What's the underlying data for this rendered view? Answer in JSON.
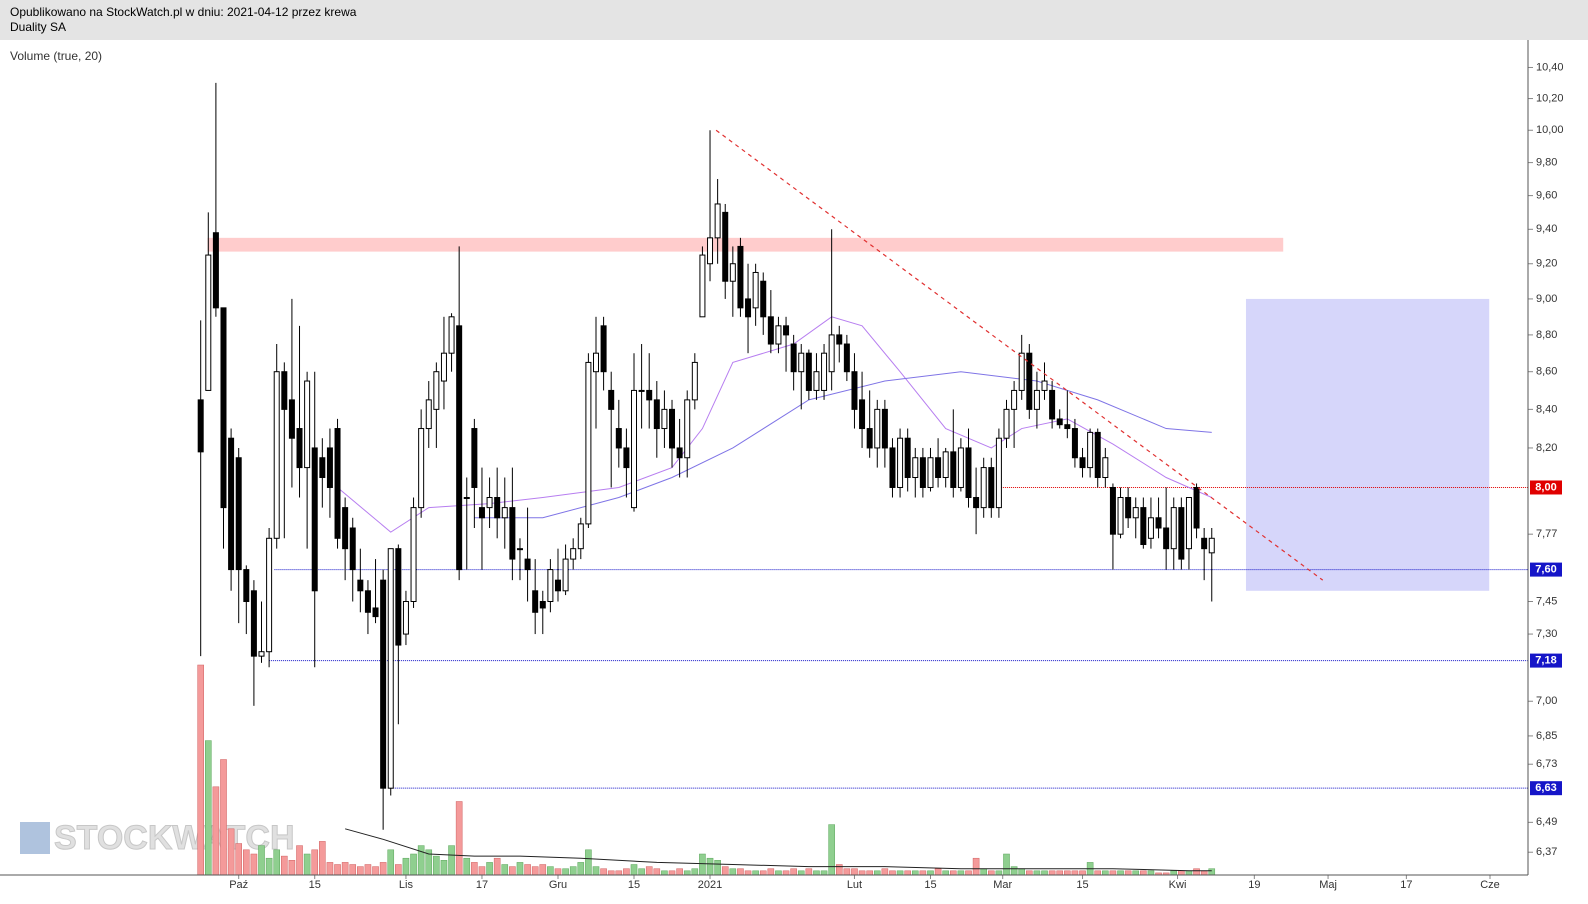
{
  "header": {
    "line1": "Opublikowano na StockWatch.pl w dniu: 2021-04-12 przez krewa",
    "line2": "Duality SA"
  },
  "indicator_label": "Volume (true, 20)",
  "watermark": "STOCKWATCH",
  "chart_data": {
    "type": "candlestick",
    "log_scale": true,
    "xlim": [
      -26.4,
      174.6
    ],
    "ylim": [
      6.28,
      10.58
    ],
    "xticks": [
      {
        "value": 5,
        "label": "Paź"
      },
      {
        "value": 15,
        "label": "15"
      },
      {
        "value": 27,
        "label": "Lis"
      },
      {
        "value": 37,
        "label": "17"
      },
      {
        "value": 47,
        "label": "Gru"
      },
      {
        "value": 57,
        "label": "15"
      },
      {
        "value": 67,
        "label": "2021"
      },
      {
        "value": 86,
        "label": "Lut"
      },
      {
        "value": 96,
        "label": "15"
      },
      {
        "value": 105.5,
        "label": "Mar"
      },
      {
        "value": 116,
        "label": "15"
      },
      {
        "value": 128.5,
        "label": "Kwi"
      },
      {
        "value": 138.6,
        "label": "19"
      },
      {
        "value": 148.3,
        "label": "Maj"
      },
      {
        "value": 158.6,
        "label": "17"
      },
      {
        "value": 169.6,
        "label": "Cze"
      }
    ],
    "yticks": [
      {
        "value": 10.4,
        "label": "10,40"
      },
      {
        "value": 10.2,
        "label": "10,20"
      },
      {
        "value": 10,
        "label": "10,00"
      },
      {
        "value": 9.8,
        "label": "9,80"
      },
      {
        "value": 9.6,
        "label": "9,60"
      },
      {
        "value": 9.4,
        "label": "9,40"
      },
      {
        "value": 9.2,
        "label": "9,20"
      },
      {
        "value": 9,
        "label": "9,00"
      },
      {
        "value": 8.8,
        "label": "8,80"
      },
      {
        "value": 8.6,
        "label": "8,60"
      },
      {
        "value": 8.4,
        "label": "8,40"
      },
      {
        "value": 8.2,
        "label": "8,20"
      },
      {
        "value": 7.77,
        "label": "7,77"
      },
      {
        "value": 7.45,
        "label": "7,45"
      },
      {
        "value": 7.3,
        "label": "7,30"
      },
      {
        "value": 7,
        "label": "7,00"
      },
      {
        "value": 6.85,
        "label": "6,85"
      },
      {
        "value": 6.73,
        "label": "6,73"
      },
      {
        "value": 6.49,
        "label": "6,49"
      },
      {
        "value": 6.37,
        "label": "6,37"
      }
    ],
    "candles": [
      [
        8.45,
        8.88,
        7.2,
        8.18
      ],
      [
        8.5,
        9.5,
        8.5,
        9.25
      ],
      [
        9.38,
        10.3,
        8.9,
        8.95
      ],
      [
        8.95,
        8.95,
        7.7,
        7.9
      ],
      [
        8.25,
        8.3,
        7.5,
        7.6
      ],
      [
        8.15,
        8.2,
        7.35,
        7.6
      ],
      [
        7.6,
        7.62,
        7.3,
        7.45
      ],
      [
        7.5,
        7.55,
        6.98,
        7.2
      ],
      [
        7.2,
        7.45,
        7.17,
        7.22
      ],
      [
        7.22,
        7.8,
        7.15,
        7.75
      ],
      [
        7.75,
        8.75,
        7.7,
        8.6
      ],
      [
        8.6,
        8.65,
        7.75,
        8.4
      ],
      [
        8.45,
        9.0,
        8.0,
        8.25
      ],
      [
        8.3,
        8.85,
        7.95,
        8.1
      ],
      [
        8.1,
        8.6,
        7.7,
        8.55
      ],
      [
        8.2,
        8.6,
        7.15,
        7.5
      ],
      [
        8.15,
        8.25,
        7.9,
        8.05
      ],
      [
        8.2,
        8.3,
        7.85,
        8.0
      ],
      [
        8.3,
        8.35,
        7.7,
        7.75
      ],
      [
        7.9,
        7.95,
        7.55,
        7.7
      ],
      [
        7.8,
        7.85,
        7.45,
        7.6
      ],
      [
        7.55,
        7.7,
        7.4,
        7.5
      ],
      [
        7.5,
        7.55,
        7.3,
        7.4
      ],
      [
        7.42,
        7.65,
        7.35,
        7.38
      ],
      [
        7.55,
        7.6,
        6.46,
        6.63
      ],
      [
        6.63,
        7.7,
        6.6,
        7.7
      ],
      [
        7.7,
        7.72,
        6.9,
        7.25
      ],
      [
        7.3,
        7.5,
        7.25,
        7.45
      ],
      [
        7.45,
        7.95,
        7.42,
        7.9
      ],
      [
        7.9,
        8.4,
        7.85,
        8.3
      ],
      [
        8.3,
        8.55,
        8.2,
        8.45
      ],
      [
        8.4,
        8.65,
        8.2,
        8.6
      ],
      [
        8.55,
        8.9,
        8.4,
        8.7
      ],
      [
        8.7,
        8.92,
        8.6,
        8.9
      ],
      [
        8.85,
        9.3,
        7.55,
        7.6
      ],
      [
        7.95,
        8.05,
        7.6,
        7.95
      ],
      [
        8.3,
        8.35,
        7.8,
        8.0
      ],
      [
        7.9,
        8.1,
        7.6,
        7.85
      ],
      [
        7.9,
        8.05,
        7.8,
        7.95
      ],
      [
        7.95,
        8.1,
        7.75,
        7.85
      ],
      [
        7.85,
        8.05,
        7.7,
        7.9
      ],
      [
        7.9,
        8.1,
        7.55,
        7.65
      ],
      [
        7.7,
        7.75,
        7.55,
        7.7
      ],
      [
        7.65,
        7.9,
        7.45,
        7.6
      ],
      [
        7.5,
        7.65,
        7.3,
        7.4
      ],
      [
        7.45,
        7.5,
        7.3,
        7.42
      ],
      [
        7.45,
        7.65,
        7.4,
        7.6
      ],
      [
        7.55,
        7.7,
        7.45,
        7.5
      ],
      [
        7.5,
        7.72,
        7.48,
        7.65
      ],
      [
        7.65,
        7.75,
        7.6,
        7.7
      ],
      [
        7.7,
        7.85,
        7.65,
        7.82
      ],
      [
        7.82,
        8.7,
        7.8,
        8.65
      ],
      [
        8.6,
        8.9,
        8.3,
        8.7
      ],
      [
        8.85,
        8.9,
        8.5,
        8.6
      ],
      [
        8.5,
        8.6,
        8.0,
        8.4
      ],
      [
        8.3,
        8.45,
        8.1,
        8.2
      ],
      [
        8.2,
        8.3,
        7.95,
        8.1
      ],
      [
        7.9,
        8.7,
        7.88,
        8.5
      ],
      [
        8.5,
        8.75,
        8.3,
        8.5
      ],
      [
        8.5,
        8.7,
        8.3,
        8.45
      ],
      [
        8.45,
        8.55,
        8.15,
        8.3
      ],
      [
        8.3,
        8.5,
        8.2,
        8.4
      ],
      [
        8.4,
        8.45,
        8.1,
        8.2
      ],
      [
        8.2,
        8.35,
        8.05,
        8.15
      ],
      [
        8.15,
        8.5,
        8.05,
        8.45
      ],
      [
        8.45,
        8.7,
        8.4,
        8.65
      ],
      [
        8.9,
        9.3,
        8.9,
        9.25
      ],
      [
        9.2,
        10.0,
        9.1,
        9.35
      ],
      [
        9.35,
        9.7,
        9.2,
        9.55
      ],
      [
        9.5,
        9.55,
        9.0,
        9.1
      ],
      [
        9.1,
        9.3,
        8.9,
        9.2
      ],
      [
        9.3,
        9.35,
        8.9,
        8.95
      ],
      [
        9.0,
        9.2,
        8.7,
        8.9
      ],
      [
        8.95,
        9.2,
        8.85,
        9.15
      ],
      [
        9.1,
        9.15,
        8.8,
        8.9
      ],
      [
        8.9,
        9.05,
        8.7,
        8.75
      ],
      [
        8.75,
        8.9,
        8.7,
        8.85
      ],
      [
        8.85,
        8.9,
        8.6,
        8.8
      ],
      [
        8.75,
        8.8,
        8.5,
        8.6
      ],
      [
        8.6,
        8.75,
        8.4,
        8.7
      ],
      [
        8.7,
        8.72,
        8.45,
        8.5
      ],
      [
        8.5,
        8.7,
        8.45,
        8.6
      ],
      [
        8.5,
        8.75,
        8.45,
        8.7
      ],
      [
        8.6,
        9.4,
        8.5,
        8.8
      ],
      [
        8.8,
        8.85,
        8.65,
        8.75
      ],
      [
        8.75,
        8.8,
        8.55,
        8.6
      ],
      [
        8.6,
        8.7,
        8.3,
        8.4
      ],
      [
        8.45,
        8.6,
        8.2,
        8.3
      ],
      [
        8.3,
        8.5,
        8.15,
        8.2
      ],
      [
        8.2,
        8.45,
        8.1,
        8.4
      ],
      [
        8.4,
        8.45,
        8.1,
        8.2
      ],
      [
        8.2,
        8.25,
        7.95,
        8.0
      ],
      [
        8.0,
        8.3,
        7.95,
        8.25
      ],
      [
        8.25,
        8.3,
        7.98,
        8.05
      ],
      [
        8.05,
        8.2,
        7.95,
        8.15
      ],
      [
        8.15,
        8.2,
        7.95,
        8.0
      ],
      [
        8.0,
        8.2,
        7.98,
        8.15
      ],
      [
        8.15,
        8.25,
        8.0,
        8.05
      ],
      [
        8.05,
        8.2,
        8.0,
        8.18
      ],
      [
        8.18,
        8.4,
        7.95,
        8.0
      ],
      [
        8.0,
        8.25,
        7.98,
        8.2
      ],
      [
        8.2,
        8.3,
        7.9,
        7.95
      ],
      [
        7.95,
        8.1,
        7.77,
        7.9
      ],
      [
        7.9,
        8.15,
        7.85,
        8.1
      ],
      [
        8.1,
        8.15,
        7.85,
        7.9
      ],
      [
        7.9,
        8.3,
        7.85,
        8.25
      ],
      [
        8.25,
        8.45,
        8.2,
        8.4
      ],
      [
        8.4,
        8.55,
        8.2,
        8.5
      ],
      [
        8.5,
        8.8,
        8.45,
        8.7
      ],
      [
        8.7,
        8.75,
        8.35,
        8.4
      ],
      [
        8.4,
        8.6,
        8.3,
        8.5
      ],
      [
        8.5,
        8.65,
        8.45,
        8.55
      ],
      [
        8.5,
        8.55,
        8.3,
        8.35
      ],
      [
        8.35,
        8.4,
        8.3,
        8.32
      ],
      [
        8.32,
        8.5,
        8.25,
        8.3
      ],
      [
        8.3,
        8.35,
        8.1,
        8.15
      ],
      [
        8.15,
        8.2,
        8.05,
        8.1
      ],
      [
        8.1,
        8.3,
        8.05,
        8.28
      ],
      [
        8.28,
        8.3,
        8.0,
        8.05
      ],
      [
        8.05,
        8.2,
        8.0,
        8.15
      ],
      [
        8.0,
        8.02,
        7.6,
        7.77
      ],
      [
        7.77,
        8.0,
        7.75,
        7.95
      ],
      [
        7.95,
        8.0,
        7.8,
        7.85
      ],
      [
        7.85,
        7.95,
        7.75,
        7.9
      ],
      [
        7.9,
        7.95,
        7.7,
        7.72
      ],
      [
        7.75,
        7.95,
        7.7,
        7.85
      ],
      [
        7.85,
        7.95,
        7.75,
        7.8
      ],
      [
        7.8,
        8.0,
        7.6,
        7.7
      ],
      [
        7.7,
        7.95,
        7.6,
        7.9
      ],
      [
        7.9,
        7.95,
        7.6,
        7.65
      ],
      [
        7.7,
        7.95,
        7.6,
        7.95
      ],
      [
        8.0,
        8.02,
        7.75,
        7.8
      ],
      [
        7.75,
        7.8,
        7.55,
        7.7
      ],
      [
        7.68,
        7.8,
        7.45,
        7.75
      ]
    ],
    "volume": {
      "up_color": "#8fcf8f",
      "down_color": "#f49a9a",
      "values": [
        100,
        64,
        42,
        55,
        22,
        15,
        12,
        10,
        14,
        8,
        12,
        9,
        7,
        14,
        10,
        12,
        16,
        6,
        5,
        6,
        5,
        4,
        5,
        4,
        6,
        12,
        5,
        8,
        10,
        14,
        12,
        9,
        7,
        14,
        35,
        8,
        6,
        4,
        6,
        8,
        5,
        4,
        6,
        5,
        4,
        5,
        4,
        3,
        3,
        4,
        6,
        12,
        4,
        3,
        2,
        2,
        3,
        5,
        3,
        4,
        3,
        2,
        2,
        3,
        2,
        3,
        10,
        8,
        7,
        4,
        3,
        3,
        2,
        2,
        2,
        3,
        2,
        2,
        3,
        2,
        3,
        2,
        2,
        24,
        5,
        3,
        3,
        2,
        2,
        2,
        3,
        2,
        2,
        2,
        2,
        2,
        2,
        3,
        2,
        2,
        2,
        2,
        8,
        3,
        2,
        2,
        10,
        4,
        3,
        2,
        2,
        2,
        2,
        2,
        2,
        2,
        2,
        6,
        2,
        2,
        2,
        2,
        2,
        2,
        2,
        2,
        1,
        1,
        2,
        2,
        2,
        3,
        2,
        3
      ],
      "ma": {
        "color": "#222222",
        "x": [
          19,
          24,
          30,
          36,
          42,
          50,
          60,
          70,
          80,
          90,
          100,
          110,
          120,
          130,
          133
        ],
        "values": [
          22,
          17,
          10,
          9,
          9,
          8,
          6,
          5,
          4,
          4,
          3,
          3,
          3,
          2,
          2
        ]
      }
    },
    "ma": [
      {
        "color": "#b77ef0",
        "x": [
          18,
          25,
          30,
          38,
          45,
          55,
          62,
          66,
          70,
          78,
          83,
          87,
          92,
          98,
          104,
          108,
          114,
          120,
          127,
          133
        ],
        "values": [
          8.0,
          7.78,
          7.9,
          7.92,
          7.95,
          8.0,
          8.1,
          8.3,
          8.65,
          8.75,
          8.9,
          8.85,
          8.6,
          8.3,
          8.2,
          8.3,
          8.35,
          8.22,
          8.05,
          7.95
        ]
      },
      {
        "color": "#7f74e6",
        "x": [
          36,
          45,
          55,
          62,
          70,
          80,
          90,
          100,
          110,
          118,
          127,
          133
        ],
        "values": [
          7.85,
          7.85,
          7.95,
          8.05,
          8.2,
          8.45,
          8.55,
          8.6,
          8.55,
          8.45,
          8.3,
          8.28
        ]
      }
    ],
    "zone": {
      "x": [
        0.9,
        142.4
      ],
      "y": [
        9.27,
        9.35
      ],
      "color": "#ffcccc"
    },
    "box": {
      "x": [
        137.5,
        169.5
      ],
      "y": [
        7.5,
        9.0
      ],
      "color": "#d6d6fa"
    },
    "trendline": {
      "x": [
        67.8,
        147.6
      ],
      "y": [
        10.0,
        7.55
      ],
      "color": "#e03030"
    },
    "levels": [
      {
        "value": 8.0,
        "label": "8,00",
        "color": "#e00000",
        "from": 105
      },
      {
        "value": 7.6,
        "label": "7,60",
        "color": "#1515c8",
        "from": 9.7
      },
      {
        "value": 7.18,
        "label": "7,18",
        "color": "#1515c8",
        "from": 9
      },
      {
        "value": 6.63,
        "label": "6,63",
        "color": "#1515c8",
        "from": 25
      }
    ]
  }
}
